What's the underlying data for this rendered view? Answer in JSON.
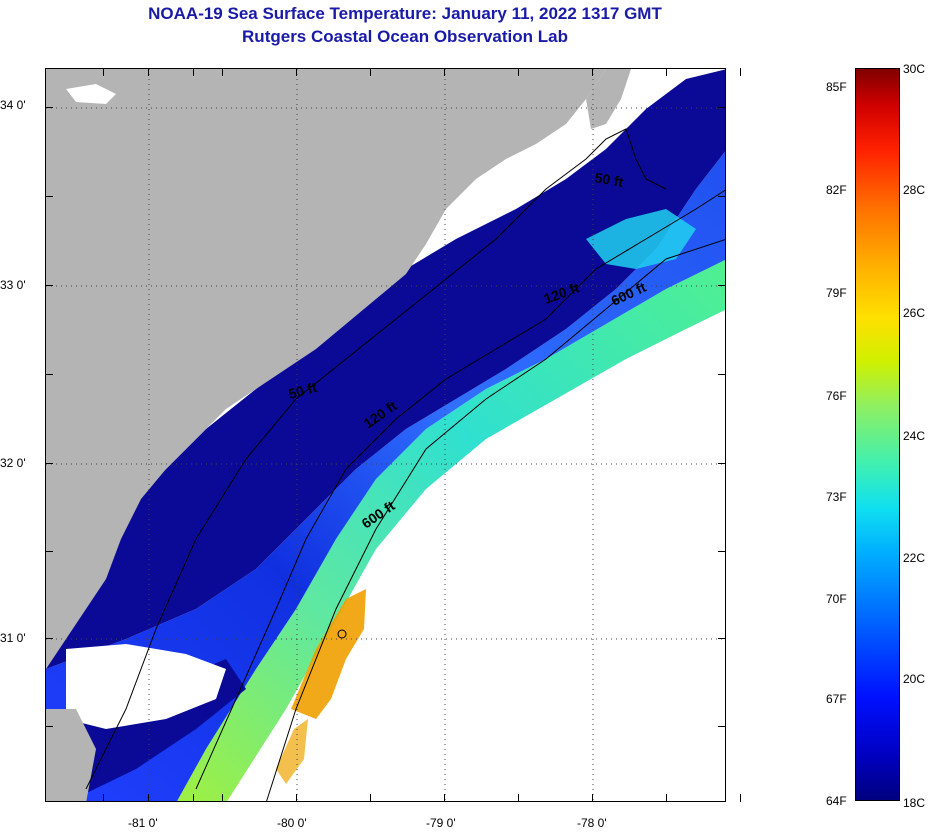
{
  "header": {
    "title_line1": "NOAA-19 Sea Surface Temperature:  January 11, 2022 1317 GMT",
    "title_line2": "Rutgers Coastal Ocean Observation Lab"
  },
  "map": {
    "lat_labels": [
      "34 0'",
      "33 0'",
      "32 0'",
      "31 0'"
    ],
    "lon_labels": [
      "-81 0'",
      "-80 0'",
      "-79 0'",
      "-78 0'"
    ],
    "contour_labels": [
      "50 ft",
      "120 ft",
      "600 ft",
      "50 ft",
      "120 ft",
      "600 ft"
    ],
    "colors": {
      "land": "#b4b4b4",
      "cloud": "#ffffff",
      "cold_water": "#0a0a96",
      "warm_patch": "#f0a000"
    }
  },
  "colorbar": {
    "fahrenheit": [
      "85F",
      "82F",
      "79F",
      "76F",
      "73F",
      "70F",
      "67F",
      "64F"
    ],
    "celsius": [
      "30C",
      "28C",
      "26C",
      "24C",
      "22C",
      "20C",
      "18C"
    ]
  }
}
